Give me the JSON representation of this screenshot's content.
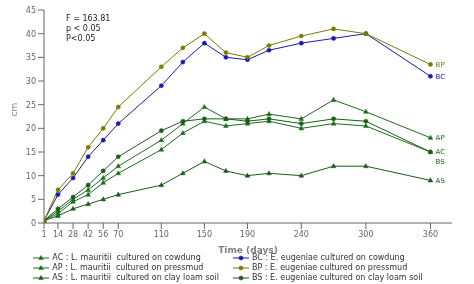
{
  "chart_data": {
    "type": "line",
    "x_label": "Time (days)",
    "y_label": "cm",
    "x": [
      1,
      14,
      28,
      42,
      56,
      70,
      110,
      130,
      150,
      170,
      190,
      210,
      240,
      270,
      300,
      360
    ],
    "xlim": [
      1,
      380
    ],
    "xticks": [
      1,
      14,
      28,
      42,
      56,
      70,
      110,
      150,
      190,
      240,
      300,
      360
    ],
    "ylim": [
      0,
      45
    ],
    "yticks": [
      0,
      5,
      10,
      15,
      20,
      25,
      30,
      35,
      40,
      45
    ],
    "legend": "bottom",
    "series": [
      {
        "name": "AS : L. mauritii  cultured on clay loam soil",
        "color": "#1a5c1a",
        "marker": "triangle",
        "values": [
          0.5,
          1.5,
          3.0,
          4.0,
          5.0,
          6.0,
          8.0,
          10.5,
          13.0,
          11.0,
          10.0,
          10.5,
          10.0,
          12.0,
          12.0,
          9.0
        ]
      },
      {
        "name": "AC : L. mauritii  cultured on cowdung",
        "color": "#1a6e1a",
        "marker": "triangle",
        "values": [
          0.5,
          2.0,
          4.5,
          6.0,
          8.5,
          10.5,
          15.5,
          19.0,
          21.5,
          20.5,
          21.0,
          21.5,
          20.0,
          21.0,
          20.5,
          15.0
        ]
      },
      {
        "name": "AP : L. mauritii  cultured on pressmud",
        "color": "#1a6e1a",
        "marker": "triangle",
        "values": [
          0.5,
          2.5,
          5.0,
          7.0,
          9.5,
          12.0,
          17.5,
          21.0,
          24.5,
          22.0,
          22.0,
          23.0,
          22.0,
          26.0,
          23.5,
          18.0
        ]
      },
      {
        "name": "BS : E. eugeniae cultured on clay loam soil",
        "color": "#1a5c1a",
        "marker": "circle",
        "values": [
          0.5,
          3.0,
          5.5,
          8.0,
          11.0,
          14.0,
          19.5,
          21.5,
          22.0,
          22.0,
          21.5,
          22.0,
          21.0,
          22.0,
          21.5,
          15.0
        ]
      },
      {
        "name": "BC : E. eugeniae cultured on cowdung",
        "color": "#1a1aaa",
        "marker": "circle",
        "values": [
          0.5,
          6.0,
          9.5,
          14.0,
          17.5,
          21.0,
          29.0,
          34.0,
          38.0,
          35.0,
          34.5,
          36.5,
          38.0,
          39.0,
          40.0,
          31.0
        ]
      },
      {
        "name": "BP : E. eugeniae cultured on pressmud",
        "color": "#7a7a00",
        "marker": "circle",
        "values": [
          0.5,
          7.0,
          10.5,
          16.0,
          20.0,
          24.5,
          33.0,
          37.0,
          40.0,
          36.0,
          35.0,
          37.5,
          39.5,
          41.0,
          40.0,
          33.5
        ]
      }
    ],
    "annotations": [
      {
        "text": "F = 163.81\np < 0.05\nP<0.05"
      },
      {
        "text": "BP",
        "x": 362,
        "y": 33.5,
        "color": "#7a7a00"
      },
      {
        "text": "BC",
        "x": 362,
        "y": 31.0,
        "color": "#1a1aaa"
      },
      {
        "text": "AP",
        "x": 362,
        "y": 18.0,
        "color": "#1a6e1a"
      },
      {
        "text": "AC",
        "x": 362,
        "y": 15.0,
        "color": "#1a6e1a"
      },
      {
        "text": "BS",
        "x": 362,
        "y": 13.0,
        "color": "#1a5c1a"
      },
      {
        "text": "AS",
        "x": 362,
        "y": 9.0,
        "color": "#1a5c1a"
      }
    ]
  }
}
